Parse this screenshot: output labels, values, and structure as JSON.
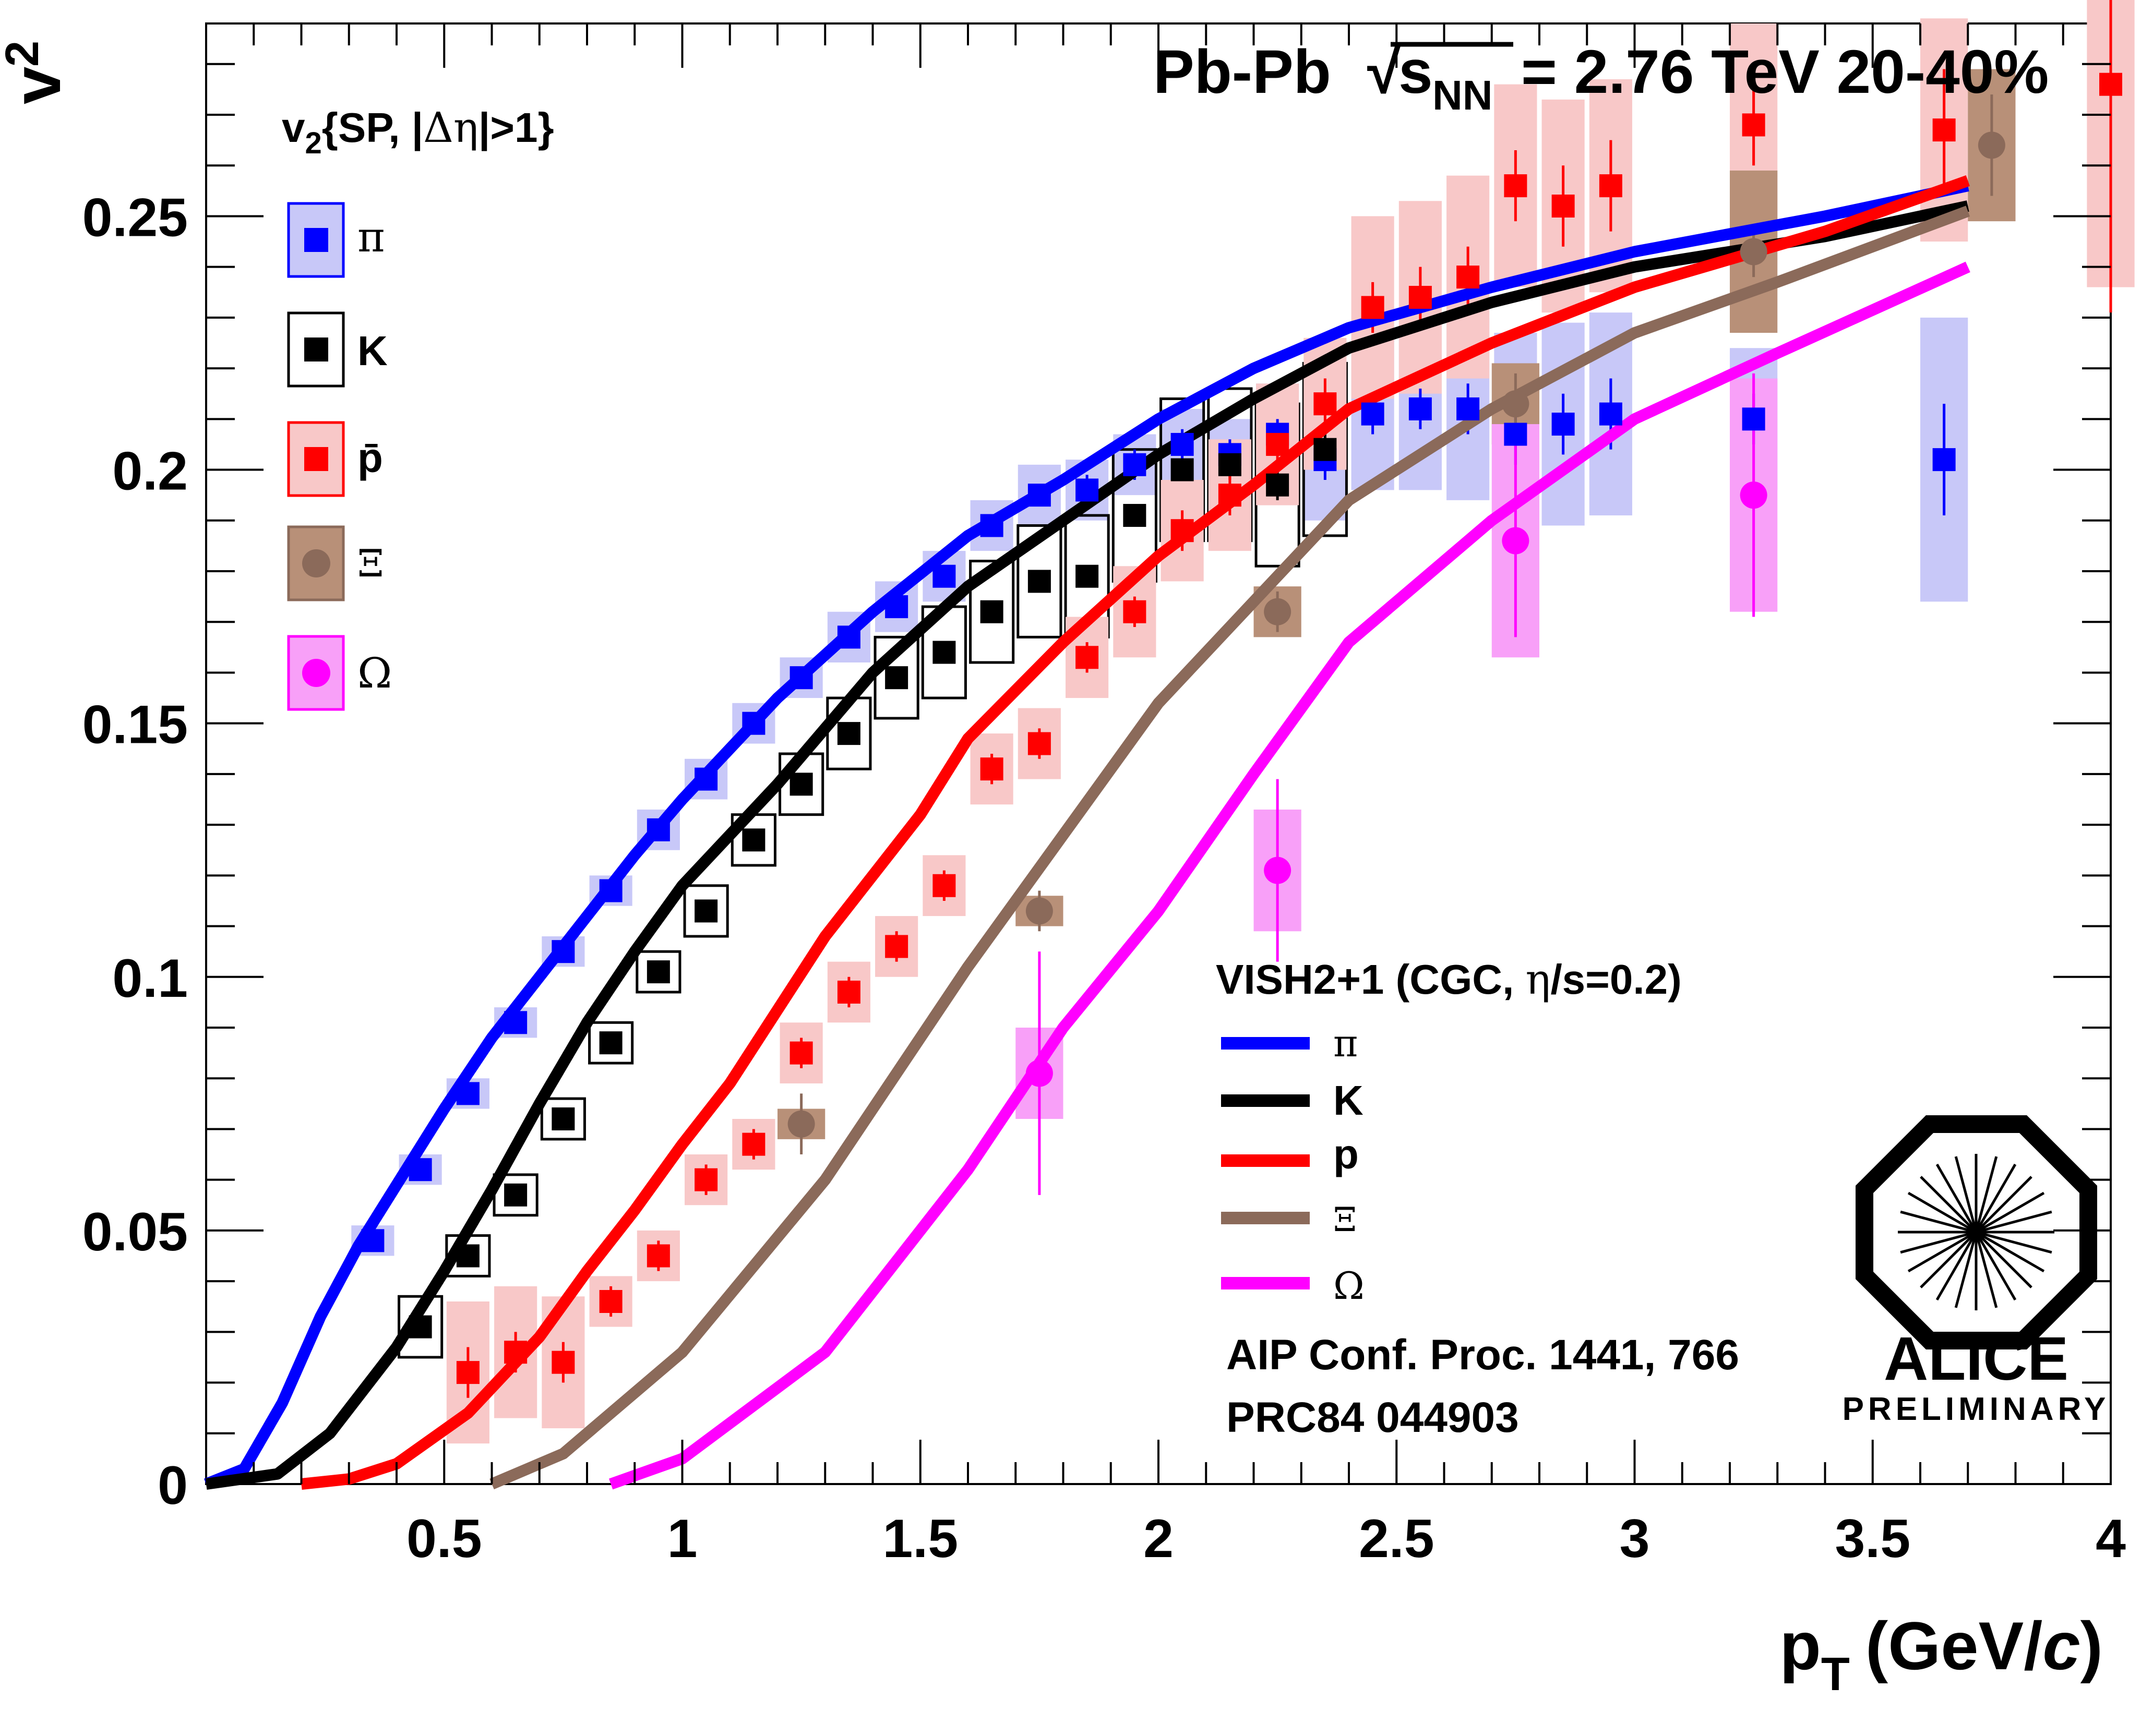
{
  "chart_data": {
    "type": "scatter",
    "title": "Pb-Pb √sNN = 2.76 TeV 20-40%",
    "title_parts": {
      "collision": "Pb-Pb",
      "sqrt": "√",
      "s": "s",
      "nn": "NN",
      "energy": "= 2.76 TeV 20-40%"
    },
    "xlabel": "pT (GeV/c)",
    "xlabel_parts": {
      "p": "p",
      "t": "T",
      "unit_open": "(GeV/",
      "unit_c": "c",
      "unit_close": ")"
    },
    "ylabel": "v2",
    "ylabel_parts": {
      "v": "v",
      "sub": "2"
    },
    "xlim": [
      0,
      4
    ],
    "ylim": [
      0,
      0.288
    ],
    "x_ticks": [
      0.5,
      1,
      1.5,
      2,
      2.5,
      3,
      3.5,
      4
    ],
    "x_tick_labels": [
      "0.5",
      "1",
      "1.5",
      "2",
      "2.5",
      "3",
      "3.5",
      "4"
    ],
    "y_ticks": [
      0,
      0.05,
      0.1,
      0.15,
      0.2,
      0.25
    ],
    "y_tick_labels": [
      "0",
      "0.05",
      "0.1",
      "0.15",
      "0.2",
      "0.25"
    ],
    "data_legend_title": "v2{SP, |Δη|>1}",
    "data_legend_title_parts": {
      "v": "v",
      "sub": "2",
      "rest1": "{SP, |",
      "greek": "Δη",
      "rest2": "|>1}"
    },
    "model_legend_title": "VISH2+1 (CGC, η/s=0.2)",
    "model_legend_title_parts": {
      "a": "VISH2+1 (CGC, ",
      "greek": "η",
      "b": "/s=0.2)"
    },
    "references": [
      "AIP Conf. Proc. 1441, 766",
      "PRC84 044903"
    ],
    "logo": {
      "name": "ALICE",
      "tag": "PRELIMINARY"
    },
    "series": [
      {
        "name": "π",
        "kind": "data",
        "marker": "square",
        "color": "#0000ff",
        "box_fill": "#c8c8f8",
        "box_stroke": "none",
        "x": [
          0.35,
          0.45,
          0.55,
          0.65,
          0.75,
          0.85,
          0.95,
          1.05,
          1.15,
          1.25,
          1.35,
          1.45,
          1.55,
          1.65,
          1.75,
          1.85,
          1.95,
          2.05,
          2.15,
          2.25,
          2.35,
          2.45,
          2.55,
          2.65,
          2.75,
          2.85,
          2.95,
          3.25,
          3.65
        ],
        "y": [
          0.048,
          0.062,
          0.077,
          0.091,
          0.105,
          0.117,
          0.129,
          0.139,
          0.15,
          0.159,
          0.167,
          0.173,
          0.179,
          0.189,
          0.195,
          0.196,
          0.201,
          0.205,
          0.203,
          0.207,
          0.202,
          0.211,
          0.212,
          0.212,
          0.207,
          0.209,
          0.211,
          0.21,
          0.202
        ],
        "err": [
          0.002,
          0.002,
          0.002,
          0.002,
          0.002,
          0.002,
          0.002,
          0.002,
          0.002,
          0.002,
          0.002,
          0.002,
          0.002,
          0.002,
          0.002,
          0.003,
          0.003,
          0.003,
          0.003,
          0.003,
          0.004,
          0.004,
          0.004,
          0.005,
          0.006,
          0.006,
          0.007,
          0.005,
          0.011
        ],
        "sys": [
          0.003,
          0.003,
          0.003,
          0.003,
          0.003,
          0.003,
          0.004,
          0.004,
          0.004,
          0.004,
          0.005,
          0.005,
          0.005,
          0.005,
          0.006,
          0.006,
          0.006,
          0.007,
          0.007,
          0.01,
          0.012,
          0.015,
          0.016,
          0.018,
          0.02,
          0.02,
          0.02,
          0.014,
          0.028
        ]
      },
      {
        "name": "K",
        "kind": "data",
        "marker": "square",
        "color": "#000000",
        "box_fill": "none",
        "box_stroke": "#000000",
        "x": [
          0.45,
          0.55,
          0.65,
          0.75,
          0.85,
          0.95,
          1.05,
          1.15,
          1.25,
          1.35,
          1.45,
          1.55,
          1.65,
          1.75,
          1.85,
          1.95,
          2.05,
          2.15,
          2.25,
          2.35
        ],
        "y": [
          0.031,
          0.045,
          0.057,
          0.072,
          0.087,
          0.101,
          0.113,
          0.127,
          0.138,
          0.148,
          0.159,
          0.164,
          0.172,
          0.178,
          0.179,
          0.191,
          0.2,
          0.201,
          0.197,
          0.204
        ],
        "err": [
          0.002,
          0.002,
          0.002,
          0.002,
          0.002,
          0.002,
          0.002,
          0.002,
          0.002,
          0.002,
          0.002,
          0.002,
          0.002,
          0.002,
          0.002,
          0.002,
          0.002,
          0.003,
          0.003,
          0.004
        ],
        "sys": [
          0.006,
          0.004,
          0.004,
          0.004,
          0.004,
          0.004,
          0.005,
          0.005,
          0.006,
          0.007,
          0.008,
          0.009,
          0.01,
          0.011,
          0.012,
          0.013,
          0.014,
          0.015,
          0.016,
          0.017
        ]
      },
      {
        "name": "p̄",
        "kind": "data",
        "marker": "square",
        "color": "#ff0000",
        "box_fill": "#f8c8c8",
        "box_stroke": "none",
        "x": [
          0.55,
          0.65,
          0.75,
          0.85,
          0.95,
          1.05,
          1.15,
          1.25,
          1.35,
          1.45,
          1.55,
          1.65,
          1.75,
          1.85,
          1.95,
          2.05,
          2.15,
          2.25,
          2.35,
          2.45,
          2.55,
          2.65,
          2.75,
          2.85,
          2.95,
          3.25,
          3.65,
          4.0
        ],
        "y": [
          0.022,
          0.026,
          0.024,
          0.036,
          0.045,
          0.06,
          0.067,
          0.085,
          0.097,
          0.106,
          0.118,
          0.141,
          0.146,
          0.163,
          0.172,
          0.188,
          0.195,
          0.205,
          0.213,
          0.232,
          0.234,
          0.238,
          0.256,
          0.252,
          0.256,
          0.268,
          0.267,
          0.276
        ],
        "err": [
          0.005,
          0.004,
          0.004,
          0.003,
          0.003,
          0.003,
          0.003,
          0.003,
          0.003,
          0.003,
          0.003,
          0.003,
          0.003,
          0.003,
          0.003,
          0.004,
          0.004,
          0.004,
          0.005,
          0.005,
          0.006,
          0.006,
          0.007,
          0.008,
          0.009,
          0.008,
          0.012,
          0.045
        ],
        "sys": [
          0.014,
          0.013,
          0.013,
          0.005,
          0.005,
          0.005,
          0.005,
          0.006,
          0.006,
          0.006,
          0.006,
          0.007,
          0.007,
          0.008,
          0.009,
          0.01,
          0.011,
          0.012,
          0.013,
          0.018,
          0.019,
          0.02,
          0.02,
          0.021,
          0.021,
          0.02,
          0.022,
          0.04
        ]
      },
      {
        "name": "Ξ",
        "kind": "data",
        "marker": "circle",
        "color": "#8b6a5a",
        "box_fill": "#b89078",
        "box_stroke": "none",
        "x": [
          1.25,
          1.75,
          2.25,
          2.75,
          3.25,
          3.75
        ],
        "y": [
          0.071,
          0.113,
          0.172,
          0.213,
          0.243,
          0.264
        ],
        "err": [
          0.006,
          0.004,
          0.004,
          0.006,
          0.005,
          0.01
        ],
        "sys": [
          0.003,
          0.003,
          0.005,
          0.008,
          0.016,
          0.015
        ]
      },
      {
        "name": "Ω",
        "kind": "data",
        "marker": "circle",
        "color": "#ff00ff",
        "box_fill": "#f8a0f8",
        "box_stroke": "none",
        "x": [
          1.75,
          2.25,
          2.75,
          3.25
        ],
        "y": [
          0.081,
          0.121,
          0.186,
          0.195
        ],
        "err": [
          0.024,
          0.018,
          0.019,
          0.024
        ],
        "sys": [
          0.009,
          0.012,
          0.023,
          0.023
        ]
      },
      {
        "name": "π",
        "kind": "model",
        "color": "#0000ff",
        "x": [
          0.0,
          0.08,
          0.16,
          0.24,
          0.32,
          0.4,
          0.5,
          0.6,
          0.7,
          0.8,
          0.9,
          1.0,
          1.2,
          1.4,
          1.6,
          1.8,
          2.0,
          2.2,
          2.4,
          2.7,
          3.0,
          3.4,
          3.7
        ],
        "y": [
          0.0,
          0.003,
          0.016,
          0.033,
          0.047,
          0.059,
          0.074,
          0.088,
          0.1,
          0.112,
          0.124,
          0.135,
          0.155,
          0.172,
          0.187,
          0.198,
          0.21,
          0.22,
          0.228,
          0.236,
          0.243,
          0.25,
          0.256
        ]
      },
      {
        "name": "K",
        "kind": "model",
        "color": "#000000",
        "x": [
          0.0,
          0.15,
          0.26,
          0.4,
          0.5,
          0.6,
          0.7,
          0.8,
          0.9,
          1.0,
          1.2,
          1.4,
          1.6,
          1.8,
          2.0,
          2.2,
          2.4,
          2.7,
          3.0,
          3.4,
          3.7
        ],
        "y": [
          0.0,
          0.002,
          0.01,
          0.027,
          0.042,
          0.058,
          0.075,
          0.091,
          0.105,
          0.118,
          0.138,
          0.16,
          0.177,
          0.19,
          0.203,
          0.214,
          0.224,
          0.233,
          0.24,
          0.246,
          0.252
        ]
      },
      {
        "name": "p",
        "kind": "model",
        "color": "#ff0000",
        "x": [
          0.2,
          0.3,
          0.4,
          0.55,
          0.7,
          0.8,
          0.9,
          1.0,
          1.1,
          1.3,
          1.5,
          1.6,
          1.8,
          2.0,
          2.2,
          2.4,
          2.7,
          3.0,
          3.4,
          3.7
        ],
        "y": [
          0.0,
          0.001,
          0.004,
          0.014,
          0.029,
          0.042,
          0.054,
          0.067,
          0.079,
          0.108,
          0.132,
          0.147,
          0.166,
          0.183,
          0.197,
          0.212,
          0.225,
          0.236,
          0.247,
          0.257
        ]
      },
      {
        "name": "Ξ",
        "kind": "model",
        "color": "#8b6a5a",
        "x": [
          0.6,
          0.75,
          1.0,
          1.3,
          1.6,
          1.8,
          2.0,
          2.2,
          2.4,
          2.7,
          3.0,
          3.3,
          3.7
        ],
        "y": [
          0.0,
          0.006,
          0.026,
          0.06,
          0.102,
          0.128,
          0.154,
          0.174,
          0.194,
          0.212,
          0.227,
          0.237,
          0.251
        ]
      },
      {
        "name": "Ω",
        "kind": "model",
        "color": "#ff00ff",
        "x": [
          0.85,
          1.0,
          1.3,
          1.6,
          1.8,
          2.0,
          2.2,
          2.4,
          2.7,
          3.0,
          3.3,
          3.7
        ],
        "y": [
          0.0,
          0.005,
          0.026,
          0.062,
          0.09,
          0.113,
          0.14,
          0.166,
          0.19,
          0.21,
          0.223,
          0.24
        ]
      }
    ]
  }
}
